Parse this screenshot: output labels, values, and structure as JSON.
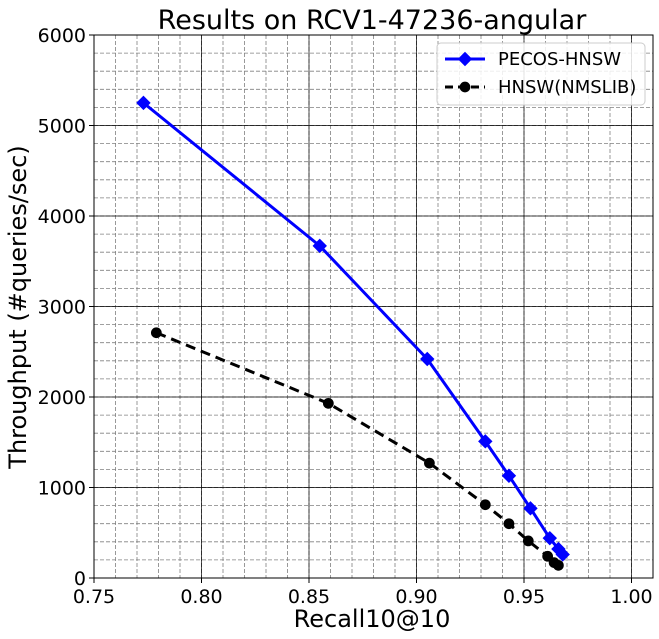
{
  "chart_data": {
    "type": "line",
    "title": "Results on RCV1-47236-angular",
    "xlabel": "Recall10@10",
    "ylabel": "Throughput (#queries/sec)",
    "xlim": [
      0.75,
      1.01
    ],
    "ylim": [
      0,
      6000
    ],
    "x_ticks": [
      "0.75",
      "0.80",
      "0.85",
      "0.90",
      "0.95",
      "1.00"
    ],
    "y_ticks": [
      "0",
      "1000",
      "2000",
      "3000",
      "4000",
      "5000",
      "6000"
    ],
    "grid": true,
    "minor_grid": true,
    "legend_position": "top-right",
    "series": [
      {
        "name": "PECOS-HNSW",
        "color": "#0000ff",
        "marker": "diamond",
        "line_style": "solid",
        "x": [
          0.773,
          0.855,
          0.905,
          0.932,
          0.943,
          0.953,
          0.962,
          0.966,
          0.968
        ],
        "y": [
          5250,
          3670,
          2420,
          1510,
          1130,
          770,
          440,
          320,
          260
        ]
      },
      {
        "name": "HNSW(NMSLIB)",
        "color": "#000000",
        "marker": "circle",
        "line_style": "dashed",
        "x": [
          0.779,
          0.859,
          0.906,
          0.932,
          0.943,
          0.952,
          0.961,
          0.964,
          0.966
        ],
        "y": [
          2710,
          1930,
          1270,
          810,
          600,
          410,
          240,
          170,
          140
        ]
      }
    ]
  }
}
